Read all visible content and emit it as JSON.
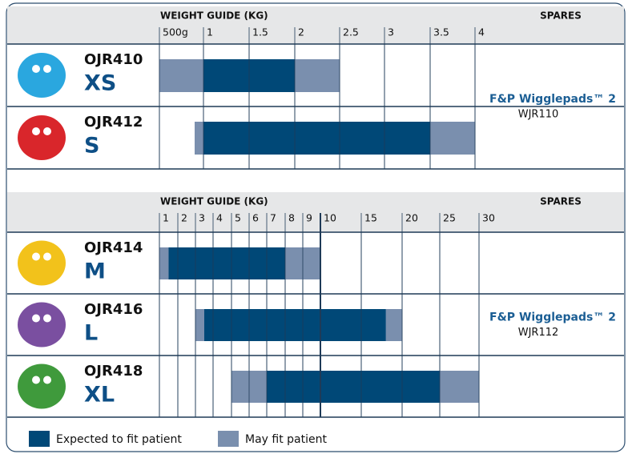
{
  "sections": [
    {
      "header": {
        "title": "WEIGHT GUIDE (KG)",
        "spares": "SPARES"
      },
      "ticks": [
        {
          "value": 0.5,
          "label": "500g"
        },
        1,
        1.5,
        2,
        2.5,
        3,
        3.5,
        4
      ],
      "products": [
        {
          "code": "OJR410",
          "size": "XS",
          "may_fit": [
            0.5,
            2.5
          ],
          "expected": [
            1,
            2
          ]
        },
        {
          "code": "OJR412",
          "size": "S",
          "may_fit": [
            0.9,
            4
          ],
          "expected": [
            1,
            3.5
          ]
        }
      ],
      "spares": {
        "name": "F&P Wigglepads™ 2",
        "code": "WJR110"
      }
    },
    {
      "header": {
        "title": "WEIGHT GUIDE (KG)",
        "spares": "SPARES"
      },
      "ticks": [
        1,
        2,
        3,
        4,
        5,
        6,
        7,
        8,
        9,
        10,
        15,
        20,
        25,
        30
      ],
      "products": [
        {
          "code": "OJR414",
          "size": "M",
          "may_fit": [
            1,
            10
          ],
          "expected": [
            1.5,
            8
          ]
        },
        {
          "code": "OJR416",
          "size": "L",
          "may_fit": [
            3,
            20
          ],
          "expected": [
            3.5,
            18
          ]
        },
        {
          "code": "OJR418",
          "size": "XL",
          "may_fit": [
            5,
            30
          ],
          "expected": [
            7,
            25
          ]
        }
      ],
      "spares": {
        "name": "F&P Wigglepads™ 2",
        "code": "WJR112"
      }
    }
  ],
  "legend": {
    "expected": "Expected to fit patient",
    "may_fit": "May fit patient"
  }
}
